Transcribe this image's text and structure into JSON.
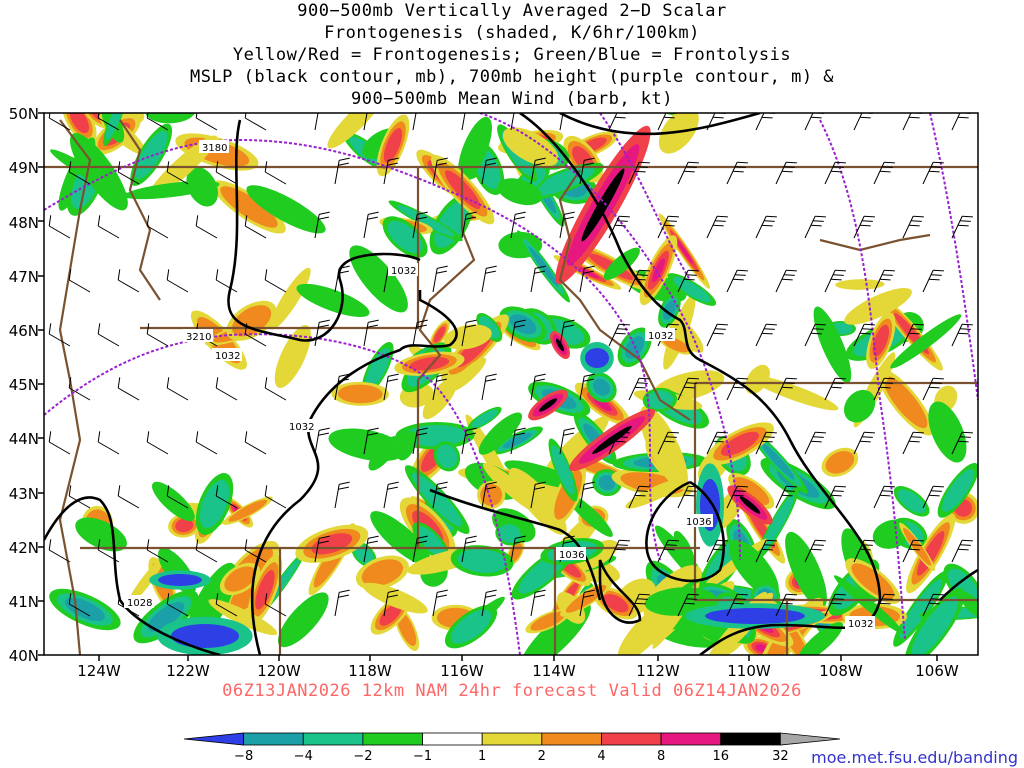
{
  "title_lines": [
    "900−500mb Vertically Averaged 2−D Scalar",
    "Frontogenesis (shaded, K/6hr/100km)",
    "Yellow/Red = Frontogenesis;  Green/Blue = Frontolysis",
    "MSLP (black contour, mb), 700mb height (purple contour, m) &",
    "900−500mb Mean Wind (barb, kt)"
  ],
  "lat_labels": [
    "50N",
    "49N",
    "48N",
    "47N",
    "46N",
    "45N",
    "44N",
    "43N",
    "42N",
    "41N",
    "40N"
  ],
  "lon_labels": [
    "124W",
    "122W",
    "120W",
    "118W",
    "116W",
    "114W",
    "112W",
    "110W",
    "108W",
    "106W"
  ],
  "mslp_labels": [
    "1032",
    "1032",
    "1032",
    "1032",
    "1036",
    "1036",
    "1028",
    "1032"
  ],
  "height_labels": [
    "3180",
    "3210"
  ],
  "footer": "06Z13JAN2026 12km NAM 24hr forecast Valid 06Z14JAN2026",
  "source_url": "moe.met.fsu.edu/banding",
  "colorbar": {
    "tick_labels": [
      "−8",
      "−4",
      "−2",
      "−1",
      "1",
      "2",
      "4",
      "8",
      "16",
      "32"
    ],
    "colors": [
      "#2f3fe6",
      "#1aa0a6",
      "#1ac38a",
      "#20cc20",
      "#ffffff",
      "#e3d838",
      "#f08a1e",
      "#f0404a",
      "#e6177e",
      "#000000",
      "#a7a7a7"
    ]
  },
  "colors": {
    "state_border": "#7a5230",
    "mslp_contour": "#000000",
    "height_contour": "#9a20d0",
    "footer_text": "#ff6666",
    "url_text": "#3333cc"
  }
}
